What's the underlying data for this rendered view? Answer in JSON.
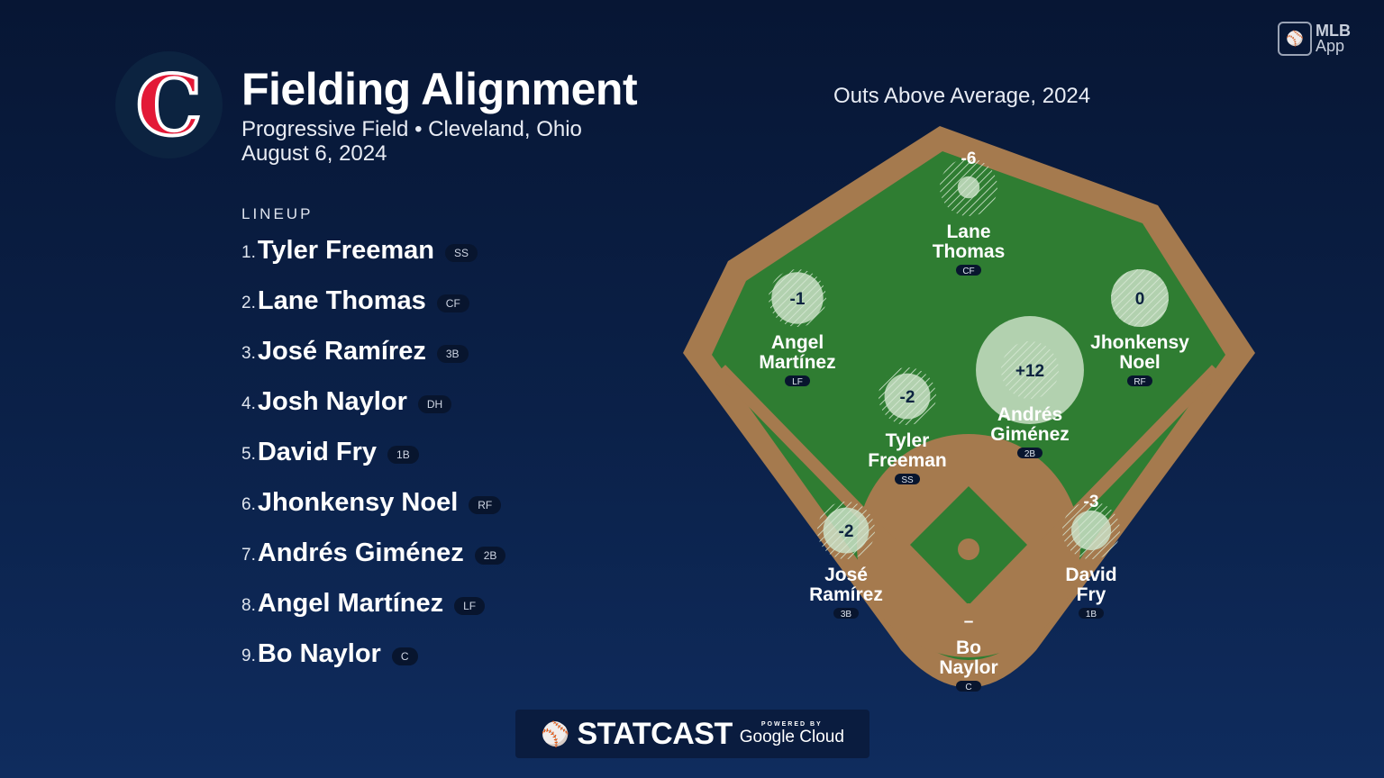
{
  "header": {
    "logo_letter": "C",
    "title": "Fielding Alignment",
    "venue": "Progressive Field • Cleveland, Ohio",
    "date": "August 6, 2024"
  },
  "brand": {
    "mlb_app": "MLB",
    "mlb_app2": "App",
    "statcast": "STATCAST",
    "powered_by": "POWERED BY",
    "google_cloud": "Google Cloud"
  },
  "lineup": {
    "heading": "LINEUP",
    "players": [
      {
        "num": "1.",
        "name": "Tyler Freeman",
        "pos": "SS"
      },
      {
        "num": "2.",
        "name": "Lane Thomas",
        "pos": "CF"
      },
      {
        "num": "3.",
        "name": "José Ramírez",
        "pos": "3B"
      },
      {
        "num": "4.",
        "name": "Josh Naylor",
        "pos": "DH"
      },
      {
        "num": "5.",
        "name": "David Fry",
        "pos": "1B"
      },
      {
        "num": "6.",
        "name": "Jhonkensy Noel",
        "pos": "RF"
      },
      {
        "num": "7.",
        "name": "Andrés Giménez",
        "pos": "2B"
      },
      {
        "num": "8.",
        "name": "Angel Martínez",
        "pos": "LF"
      },
      {
        "num": "9.",
        "name": "Bo Naylor",
        "pos": "C"
      }
    ]
  },
  "field": {
    "title": "Outs Above Average, 2024",
    "colors": {
      "grass": "#2f7d32",
      "dirt": "#a57a4e",
      "marker": "#c9dfc6"
    },
    "fielders": [
      {
        "first": "Lane",
        "last": "Thomas",
        "pos": "CF",
        "oaa": "-6",
        "value": -6
      },
      {
        "first": "Angel",
        "last": "Martínez",
        "pos": "LF",
        "oaa": "-1",
        "value": -1
      },
      {
        "first": "Jhonkensy",
        "last": "Noel",
        "pos": "RF",
        "oaa": "0",
        "value": 0
      },
      {
        "first": "Andrés",
        "last": "Giménez",
        "pos": "2B",
        "oaa": "+12",
        "value": 12
      },
      {
        "first": "Tyler",
        "last": "Freeman",
        "pos": "SS",
        "oaa": "-2",
        "value": -2
      },
      {
        "first": "José",
        "last": "Ramírez",
        "pos": "3B",
        "oaa": "-2",
        "value": -2
      },
      {
        "first": "David",
        "last": "Fry",
        "pos": "1B",
        "oaa": "-3",
        "value": -3
      },
      {
        "first": "Bo",
        "last": "Naylor",
        "pos": "C",
        "oaa": "–",
        "value": null
      }
    ]
  }
}
